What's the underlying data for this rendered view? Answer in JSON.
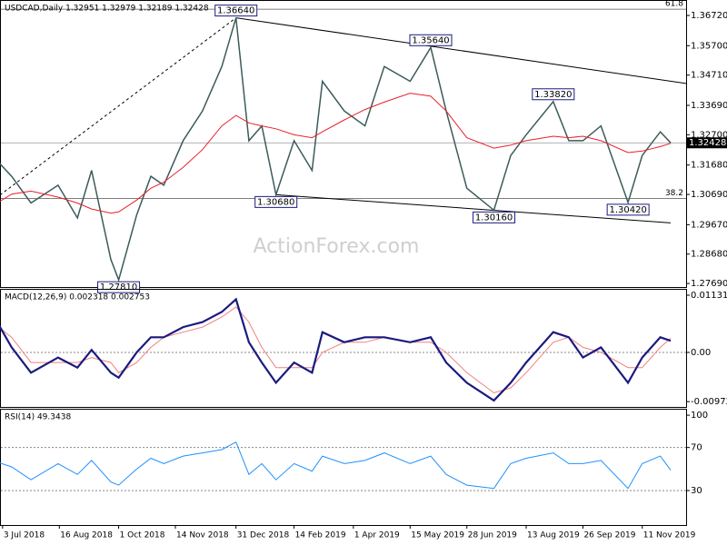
{
  "chart_data": [
    {
      "type": "line",
      "title": "USDCAD,Daily  1.32951 1.32979 1.32189 1.32428",
      "watermark": "ActionForex.com",
      "x": [
        "2018-06-25",
        "2018-07-10",
        "2018-07-25",
        "2018-08-15",
        "2018-08-30",
        "2018-09-10",
        "2018-09-25",
        "2018-10-01",
        "2018-10-15",
        "2018-10-26",
        "2018-11-05",
        "2018-11-20",
        "2018-12-05",
        "2018-12-20",
        "2018-12-31",
        "2019-01-10",
        "2019-01-20",
        "2019-01-31",
        "2019-02-14",
        "2019-02-28",
        "2019-03-08",
        "2019-03-25",
        "2019-04-10",
        "2019-04-25",
        "2019-05-15",
        "2019-05-31",
        "2019-06-12",
        "2019-06-28",
        "2019-07-19",
        "2019-08-01",
        "2019-08-13",
        "2019-09-03",
        "2019-09-15",
        "2019-09-26",
        "2019-10-10",
        "2019-10-31",
        "2019-11-11",
        "2019-11-25",
        "2019-12-03"
      ],
      "series": [
        {
          "color": "#3d5a5a",
          "values": [
            1.32,
            1.313,
            1.304,
            1.31,
            1.299,
            1.315,
            1.285,
            1.2781,
            1.3,
            1.313,
            1.31,
            1.325,
            1.335,
            1.35,
            1.3664,
            1.325,
            1.33,
            1.3068,
            1.325,
            1.315,
            1.345,
            1.335,
            1.33,
            1.35,
            1.345,
            1.3564,
            1.335,
            1.309,
            1.3016,
            1.32,
            1.327,
            1.3382,
            1.325,
            1.325,
            1.33,
            1.3042,
            1.32,
            1.328,
            1.3243
          ]
        },
        {
          "color": "#e8202a",
          "values": [
            1.303,
            1.307,
            1.308,
            1.306,
            1.304,
            1.302,
            1.3006,
            1.301,
            1.305,
            1.309,
            1.311,
            1.316,
            1.322,
            1.33,
            1.3335,
            1.331,
            1.33,
            1.329,
            1.327,
            1.326,
            1.328,
            1.332,
            1.3355,
            1.338,
            1.341,
            1.34,
            1.335,
            1.326,
            1.3225,
            1.3235,
            1.325,
            1.3265,
            1.326,
            1.3265,
            1.325,
            1.321,
            1.3215,
            1.323,
            1.3241
          ]
        }
      ],
      "annotations": [
        {
          "text": "1.36640",
          "x": "2018-12-31",
          "y": 1.3664
        },
        {
          "text": "1.27810",
          "x": "2018-10-01",
          "y": 1.2781
        },
        {
          "text": "1.30680",
          "x": "2019-01-31",
          "y": 1.3068
        },
        {
          "text": "1.35640",
          "x": "2019-05-31",
          "y": 1.3564
        },
        {
          "text": "1.30160",
          "x": "2019-07-19",
          "y": 1.3016
        },
        {
          "text": "1.33820",
          "x": "2019-09-03",
          "y": 1.3382
        },
        {
          "text": "1.30420",
          "x": "2019-10-31",
          "y": 1.3042
        }
      ],
      "trendlines": [
        {
          "x": [
            "2018-12-31",
            "2019-12-15"
          ],
          "y": [
            1.3664,
            1.3443
          ]
        },
        {
          "x": [
            "2019-01-31",
            "2019-12-03"
          ],
          "y": [
            1.3068,
            1.2973
          ]
        },
        {
          "x": [
            "2018-07-01",
            "2018-12-31"
          ],
          "y": [
            1.3067,
            1.3664
          ],
          "dashed": true
        }
      ],
      "levels": [
        {
          "name": "61.8",
          "value": 1.3693
        },
        {
          "name": "38.2",
          "value": 1.3055
        }
      ],
      "last": {
        "value": 1.32428,
        "label": "1.32428"
      },
      "xlim": [
        "2018-07-01",
        "2019-12-15"
      ],
      "ylim": [
        1.2757,
        1.3724
      ],
      "yticks": [
        {
          "value": 1.3672,
          "label": "1.36720"
        },
        {
          "value": 1.357,
          "label": "1.35700"
        },
        {
          "value": 1.3471,
          "label": "1.34710"
        },
        {
          "value": 1.3369,
          "label": "1.33690"
        },
        {
          "value": 1.327,
          "label": "1.32700"
        },
        {
          "value": 1.3168,
          "label": "1.31680"
        },
        {
          "value": 1.3069,
          "label": "1.30690"
        },
        {
          "value": 1.2967,
          "label": "1.29670"
        },
        {
          "value": 1.2868,
          "label": "1.28680"
        },
        {
          "value": 1.2769,
          "label": "1.27690"
        }
      ]
    },
    {
      "type": "line",
      "title": "MACD(12,26,9) 0.002318 0.002753",
      "x": [
        "2018-06-25",
        "2018-07-10",
        "2018-07-25",
        "2018-08-15",
        "2018-08-30",
        "2018-09-10",
        "2018-09-25",
        "2018-10-01",
        "2018-10-15",
        "2018-10-26",
        "2018-11-05",
        "2018-11-20",
        "2018-12-05",
        "2018-12-20",
        "2018-12-31",
        "2019-01-10",
        "2019-01-20",
        "2019-01-31",
        "2019-02-14",
        "2019-02-28",
        "2019-03-08",
        "2019-03-25",
        "2019-04-10",
        "2019-04-25",
        "2019-05-15",
        "2019-05-31",
        "2019-06-12",
        "2019-06-28",
        "2019-07-19",
        "2019-08-01",
        "2019-08-13",
        "2019-09-03",
        "2019-09-15",
        "2019-09-26",
        "2019-10-10",
        "2019-10-31",
        "2019-11-11",
        "2019-11-25",
        "2019-12-03"
      ],
      "series": [
        {
          "color": "#f08080",
          "values": [
            0.006,
            0.003,
            -0.002,
            -0.002,
            -0.002,
            -0.001,
            -0.002,
            -0.004,
            -0.002,
            0.001,
            0.003,
            0.004,
            0.005,
            0.007,
            0.009,
            0.006,
            0.001,
            -0.003,
            -0.003,
            -0.003,
            0.0,
            0.002,
            0.002,
            0.003,
            0.002,
            0.002,
            0.0,
            -0.004,
            -0.008,
            -0.007,
            -0.004,
            0.002,
            0.003,
            0.001,
            0.0,
            -0.003,
            -0.003,
            0.001,
            0.0028
          ]
        },
        {
          "color": "#1a1a80",
          "values": [
            0.0077,
            0.001,
            -0.004,
            -0.001,
            -0.003,
            0.0005,
            -0.004,
            -0.005,
            0.0,
            0.003,
            0.003,
            0.005,
            0.006,
            0.008,
            0.0105,
            0.002,
            -0.002,
            -0.006,
            -0.002,
            -0.004,
            0.004,
            0.002,
            0.003,
            0.003,
            0.002,
            0.003,
            -0.002,
            -0.006,
            -0.0095,
            -0.006,
            -0.002,
            0.004,
            0.003,
            -0.001,
            0.001,
            -0.006,
            -0.001,
            0.003,
            0.0023
          ]
        }
      ],
      "levels": [
        {
          "value": 0
        }
      ],
      "xlim": [
        "2018-07-01",
        "2019-12-15"
      ],
      "ylim": [
        -0.01078,
        0.01257
      ],
      "yticks": [
        {
          "value": 0.011313,
          "label": "0.011313"
        },
        {
          "value": 0,
          "label": "0.00"
        },
        {
          "value": -0.009729,
          "label": "-0.009729"
        }
      ]
    },
    {
      "type": "line",
      "title": "RSI(14) 49.3438",
      "x": [
        "2018-06-25",
        "2018-07-10",
        "2018-07-25",
        "2018-08-15",
        "2018-08-30",
        "2018-09-10",
        "2018-09-25",
        "2018-10-01",
        "2018-10-15",
        "2018-10-26",
        "2018-11-05",
        "2018-11-20",
        "2018-12-05",
        "2018-12-20",
        "2018-12-31",
        "2019-01-10",
        "2019-01-20",
        "2019-01-31",
        "2019-02-14",
        "2019-02-28",
        "2019-03-08",
        "2019-03-25",
        "2019-04-10",
        "2019-04-25",
        "2019-05-15",
        "2019-05-31",
        "2019-06-12",
        "2019-06-28",
        "2019-07-19",
        "2019-08-01",
        "2019-08-13",
        "2019-09-03",
        "2019-09-15",
        "2019-09-26",
        "2019-10-10",
        "2019-10-31",
        "2019-11-11",
        "2019-11-25",
        "2019-12-03"
      ],
      "series": [
        {
          "color": "#1e90ff",
          "values": [
            58,
            52,
            40,
            55,
            45,
            58,
            38,
            35,
            50,
            60,
            55,
            62,
            65,
            68,
            75,
            45,
            55,
            40,
            55,
            48,
            62,
            55,
            58,
            65,
            55,
            62,
            45,
            35,
            32,
            55,
            60,
            65,
            55,
            55,
            58,
            32,
            55,
            62,
            49
          ]
        }
      ],
      "levels": [
        {
          "value": 70
        },
        {
          "value": 30
        }
      ],
      "xlim": [
        "2018-07-01",
        "2019-12-15"
      ],
      "ylim": [
        -2,
        106
      ],
      "yticks": [
        100,
        70,
        30
      ],
      "xticks": [
        {
          "value": "2018-07-03",
          "label": "3 Jul 2018"
        },
        {
          "value": "2018-08-16",
          "label": "16 Aug 2018"
        },
        {
          "value": "2018-10-01",
          "label": "1 Oct 2018"
        },
        {
          "value": "2018-11-14",
          "label": "14 Nov 2018"
        },
        {
          "value": "2018-12-31",
          "label": "31 Dec 2018"
        },
        {
          "value": "2019-02-14",
          "label": "14 Feb 2019"
        },
        {
          "value": "2019-04-01",
          "label": "1 Apr 2019"
        },
        {
          "value": "2019-05-15",
          "label": "15 May 2019"
        },
        {
          "value": "2019-06-28",
          "label": "28 Jun 2019"
        },
        {
          "value": "2019-08-13",
          "label": "13 Aug 2019"
        },
        {
          "value": "2019-09-26",
          "label": "26 Sep 2019"
        },
        {
          "value": "2019-11-11",
          "label": "11 Nov 2019"
        }
      ]
    }
  ]
}
